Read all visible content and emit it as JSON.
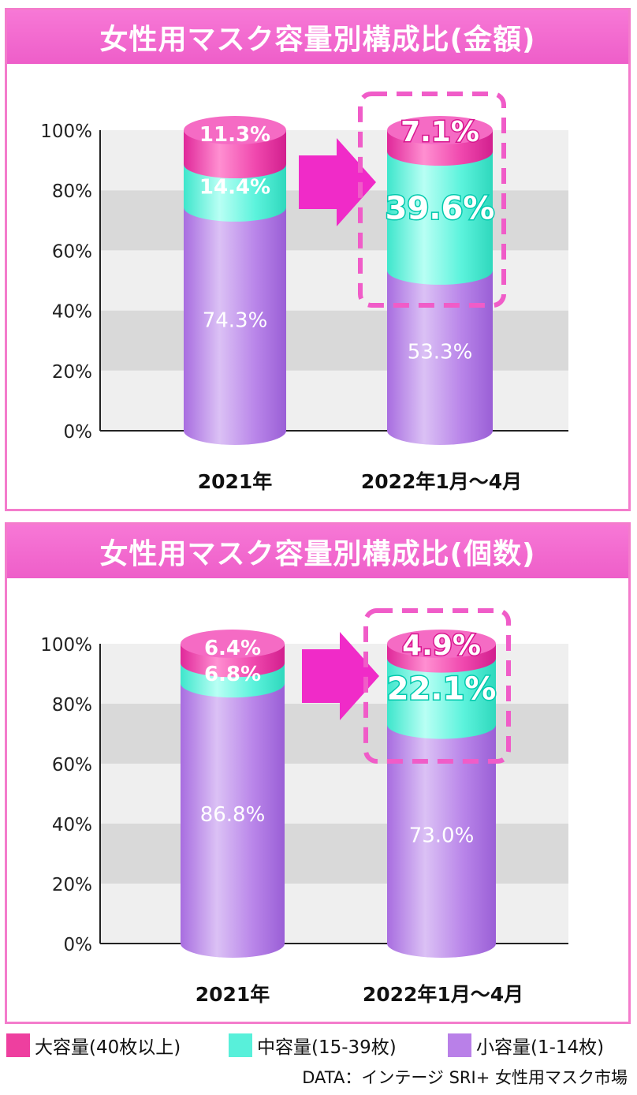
{
  "colors": {
    "large": "#f03ca8",
    "medium": "#52f2da",
    "small": "#b57fe6",
    "frame": "#f05cc8",
    "arrow": "#f02bc8",
    "band_light": "#efefef",
    "band_dark": "#d9d9d9"
  },
  "legend": [
    {
      "label": "大容量(40枚以上)",
      "color": "#ee3f9f"
    },
    {
      "label": "中容量(15-39枚)",
      "color": "#58f0da"
    },
    {
      "label": "小容量(1-14枚)",
      "color": "#b980e8"
    }
  ],
  "source": "DATA：インテージ SRI+ 女性用マスク市場",
  "chart_data": [
    {
      "type": "bar",
      "stacked": true,
      "title": "女性用マスク容量別構成比(金額)",
      "categories": [
        "2021年",
        "2022年1月～4月"
      ],
      "ylim": [
        0,
        100
      ],
      "yticks": [
        "0%",
        "20%",
        "40%",
        "60%",
        "80%",
        "100%"
      ],
      "series": [
        {
          "name": "小容量(1-14枚)",
          "values": [
            74.3,
            53.3
          ],
          "labels": [
            "74.3%",
            "53.3%"
          ]
        },
        {
          "name": "中容量(15-39枚)",
          "values": [
            14.4,
            39.6
          ],
          "labels": [
            "14.4%",
            "39.6%"
          ]
        },
        {
          "name": "大容量(40枚以上)",
          "values": [
            11.3,
            7.1
          ],
          "labels": [
            "11.3%",
            "7.1%"
          ]
        }
      ],
      "highlight_category": "2022年1月～4月"
    },
    {
      "type": "bar",
      "stacked": true,
      "title": "女性用マスク容量別構成比(個数)",
      "categories": [
        "2021年",
        "2022年1月～4月"
      ],
      "ylim": [
        0,
        100
      ],
      "yticks": [
        "0%",
        "20%",
        "40%",
        "60%",
        "80%",
        "100%"
      ],
      "series": [
        {
          "name": "小容量(1-14枚)",
          "values": [
            86.8,
            73.0
          ],
          "labels": [
            "86.8%",
            "73.0%"
          ]
        },
        {
          "name": "中容量(15-39枚)",
          "values": [
            6.8,
            22.1
          ],
          "labels": [
            "6.8%",
            "22.1%"
          ]
        },
        {
          "name": "大容量(40枚以上)",
          "values": [
            6.4,
            4.9
          ],
          "labels": [
            "6.4%",
            "4.9%"
          ]
        }
      ],
      "highlight_category": "2022年1月～4月"
    }
  ]
}
